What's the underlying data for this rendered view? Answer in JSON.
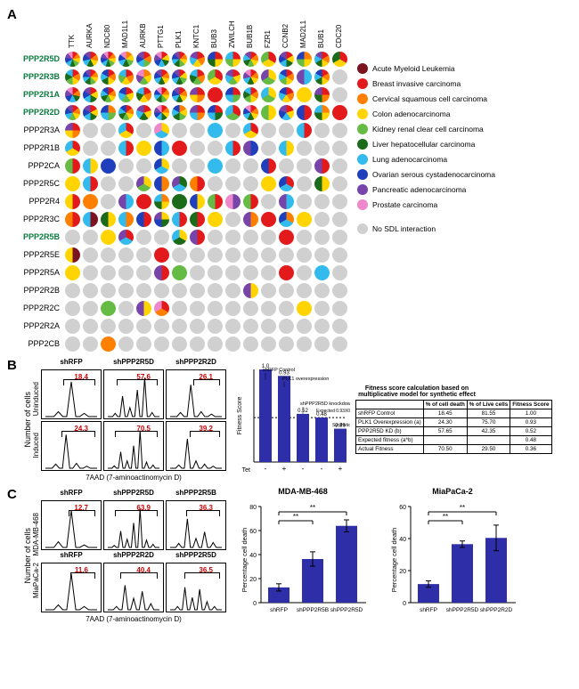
{
  "panelA": {
    "columns": [
      "TTK",
      "AURKA",
      "NDC80",
      "MAD1L1",
      "AURKB",
      "PTTG1",
      "PLK1",
      "KNTC1",
      "BUB3",
      "ZWILCH",
      "BUB1B",
      "FZR1",
      "CCNB2",
      "MAD2L1",
      "BUB1",
      "CDC20"
    ],
    "rows": [
      {
        "label": "PPP2R5D",
        "hl": true
      },
      {
        "label": "PPP2R3B",
        "hl": true
      },
      {
        "label": "PPP2R1A",
        "hl": true
      },
      {
        "label": "PPP2R2D",
        "hl": true
      },
      {
        "label": "PPP2R3A",
        "hl": false
      },
      {
        "label": "PPP2R1B",
        "hl": false
      },
      {
        "label": "PPP2CA",
        "hl": false
      },
      {
        "label": "PPP2R5C",
        "hl": false
      },
      {
        "label": "PPP2R4",
        "hl": false
      },
      {
        "label": "PPP2R3C",
        "hl": false
      },
      {
        "label": "PPP2R5B",
        "hl": true
      },
      {
        "label": "PPP2R5E",
        "hl": false
      },
      {
        "label": "PPP2R5A",
        "hl": false
      },
      {
        "label": "PPP2R2B",
        "hl": false
      },
      {
        "label": "PPP2R2C",
        "hl": false
      },
      {
        "label": "PPP2R2A",
        "hl": false
      },
      {
        "label": "PPP2CB",
        "hl": false
      }
    ],
    "cells": [
      [
        [
          "br",
          "ce",
          "co",
          "ki",
          "li",
          "lu",
          "ov",
          "pa",
          "pr"
        ],
        [
          "br",
          "ce",
          "co",
          "li",
          "lu",
          "ov",
          "pa"
        ],
        [
          "br",
          "ce",
          "co",
          "ki",
          "li",
          "lu",
          "ov",
          "pa",
          "pr"
        ],
        [
          "ce",
          "co",
          "ki",
          "li",
          "lu",
          "ov",
          "pr"
        ],
        [
          "br",
          "ce",
          "ki",
          "lu",
          "ov",
          "pa"
        ],
        [
          "br",
          "co",
          "li",
          "lu",
          "ov",
          "pa",
          "pr"
        ],
        [
          "br",
          "ce",
          "co",
          "ki",
          "li",
          "lu",
          "ov",
          "pa"
        ],
        [
          "br",
          "ce",
          "co",
          "lu",
          "pa"
        ],
        [
          "br",
          "co",
          "li",
          "ov"
        ],
        [
          "br",
          "co",
          "ki",
          "lu"
        ],
        [
          "br",
          "ce",
          "co",
          "ki",
          "li",
          "lu",
          "pa"
        ],
        [
          "br",
          "co",
          "ki"
        ],
        [
          "br",
          "co",
          "li",
          "lu",
          "ov",
          "pa"
        ],
        [
          "ce",
          "co",
          "ki",
          "ov"
        ],
        [
          "br",
          "ce",
          "co",
          "li",
          "lu",
          "pa"
        ],
        [
          "br",
          "co",
          "li"
        ]
      ],
      [
        [
          "br",
          "ce",
          "co",
          "ki",
          "li",
          "lu"
        ],
        [
          "br",
          "ce",
          "co",
          "ki",
          "li",
          "lu",
          "ov",
          "pa"
        ],
        [
          "br",
          "ce",
          "co",
          "li",
          "lu",
          "ov"
        ],
        [
          "br",
          "ce",
          "co",
          "ki",
          "lu"
        ],
        [
          "ce",
          "co",
          "ki",
          "pa",
          "pr"
        ],
        [
          "br",
          "ce",
          "co",
          "li",
          "lu",
          "ov",
          "pa"
        ],
        [
          "br",
          "co",
          "ki",
          "li",
          "lu",
          "ov",
          "pa"
        ],
        [
          "br",
          "ce",
          "ki",
          "li",
          "lu"
        ],
        [
          "br",
          "co",
          "ki"
        ],
        [
          "br",
          "co",
          "ki",
          "lu",
          "pa"
        ],
        [
          "br",
          "ce",
          "co",
          "li",
          "lu",
          "pa",
          "pr"
        ],
        [
          "co",
          "ki",
          "pa"
        ],
        [
          "br",
          "ce",
          "co",
          "ki",
          "lu",
          "ov"
        ],
        [
          "lu",
          "pa"
        ],
        [
          "br",
          "ce",
          "co",
          "li",
          "lu",
          "ov"
        ],
        []
      ],
      [
        [
          "br",
          "ce",
          "li",
          "lu",
          "ov",
          "pa",
          "pr"
        ],
        [
          "br",
          "co",
          "li",
          "lu",
          "ov",
          "pa"
        ],
        [
          "br",
          "ce",
          "co",
          "ki",
          "li",
          "lu",
          "ov"
        ],
        [
          "br",
          "co",
          "ki",
          "lu",
          "ov"
        ],
        [
          "br",
          "ce",
          "co",
          "li",
          "lu"
        ],
        [
          "br",
          "ce",
          "co",
          "ki",
          "li",
          "lu",
          "ov",
          "pr"
        ],
        [
          "br",
          "ce",
          "co",
          "li",
          "lu",
          "ov",
          "pa"
        ],
        [
          "br",
          "ce",
          "co",
          "pa"
        ],
        [
          "br"
        ],
        [
          "br",
          "ki",
          "lu",
          "ov"
        ],
        [
          "br",
          "ce",
          "co",
          "ki",
          "li",
          "lu"
        ],
        [
          "co",
          "ki",
          "lu"
        ],
        [
          "br",
          "ce",
          "co",
          "lu",
          "ov"
        ],
        [
          "co"
        ],
        [
          "br",
          "ce",
          "li",
          "pa"
        ],
        []
      ],
      [
        [
          "br",
          "ce",
          "co",
          "ki",
          "lu",
          "ov",
          "pa"
        ],
        [
          "br",
          "co",
          "li",
          "lu",
          "ov",
          "pa"
        ],
        [
          "ce",
          "ki",
          "lu",
          "ov"
        ],
        [
          "br",
          "ce",
          "co",
          "ki",
          "li",
          "lu",
          "ov"
        ],
        [
          "br",
          "co",
          "li",
          "lu",
          "pa"
        ],
        [
          "br",
          "ce",
          "co",
          "li",
          "lu",
          "ov",
          "pa",
          "pr"
        ],
        [
          "ce",
          "co",
          "ki",
          "li",
          "lu",
          "ov"
        ],
        [
          "br",
          "ce",
          "lu",
          "pa"
        ],
        [
          "br",
          "li",
          "lu",
          "ov"
        ],
        [
          "br",
          "ki",
          "lu"
        ],
        [
          "br",
          "ce",
          "co",
          "li",
          "lu",
          "ov",
          "pr"
        ],
        [
          "co",
          "ki"
        ],
        [
          "br",
          "co",
          "lu",
          "ov",
          "pa"
        ],
        [
          "br",
          "ov"
        ],
        [
          "ce",
          "co",
          "li",
          "lu"
        ],
        [
          "br"
        ]
      ],
      [
        [
          "br",
          "ce",
          "co",
          "pa"
        ],
        [],
        [],
        [
          "br",
          "co",
          "lu"
        ],
        [],
        [
          "co",
          "lu",
          "pr"
        ],
        [],
        [],
        [
          "lu"
        ],
        [],
        [
          "br",
          "co",
          "lu"
        ],
        [],
        [],
        [
          "br",
          "lu"
        ],
        [],
        []
      ],
      [
        [
          "br",
          "co",
          "lu"
        ],
        [],
        [],
        [
          "br",
          "lu"
        ],
        [
          "co"
        ],
        [
          "lu",
          "ov"
        ],
        [
          "br"
        ],
        [],
        [],
        [
          "br",
          "lu"
        ],
        [
          "ov",
          "pa"
        ],
        [],
        [
          "co",
          "lu"
        ],
        [],
        [],
        []
      ],
      [
        [
          "br",
          "ki"
        ],
        [
          "co",
          "lu"
        ],
        [
          "ov"
        ],
        [],
        [],
        [
          "co",
          "lu",
          "ov"
        ],
        [],
        [],
        [
          "lu"
        ],
        [],
        [],
        [
          "br",
          "ov"
        ],
        [],
        [],
        [
          "br",
          "pa"
        ],
        []
      ],
      [
        [
          "co"
        ],
        [
          "br",
          "lu"
        ],
        [],
        [],
        [
          "co",
          "ki",
          "pa"
        ],
        [
          "ce",
          "ov"
        ],
        [
          "li",
          "lu",
          "pa"
        ],
        [
          "br",
          "ce"
        ],
        [],
        [],
        [],
        [
          "co"
        ],
        [
          "br",
          "lu",
          "ov"
        ],
        [],
        [
          "co",
          "li"
        ],
        []
      ],
      [
        [
          "br",
          "co"
        ],
        [
          "ce"
        ],
        [],
        [
          "lu",
          "pa"
        ],
        [
          "br"
        ],
        [
          "ce",
          "co",
          "li",
          "lu"
        ],
        [
          "li"
        ],
        [
          "co",
          "ov"
        ],
        [
          "br",
          "ki"
        ],
        [
          "pa",
          "pr"
        ],
        [
          "br",
          "ki"
        ],
        [],
        [
          "lu",
          "pa"
        ],
        [],
        [],
        []
      ],
      [
        [
          "br",
          "ce"
        ],
        [
          "am",
          "lu"
        ],
        [
          "co",
          "li"
        ],
        [
          "ce",
          "lu"
        ],
        [
          "br",
          "ov"
        ],
        [
          "co",
          "li",
          "ov",
          "pa"
        ],
        [
          "br",
          "lu"
        ],
        [
          "br",
          "li"
        ],
        [
          "co"
        ],
        [],
        [
          "ce",
          "pa"
        ],
        [
          "br"
        ],
        [
          "ce",
          "lu",
          "ov"
        ],
        [
          "co"
        ],
        [],
        []
      ],
      [
        [],
        [],
        [
          "co"
        ],
        [
          "br",
          "lu",
          "pa"
        ],
        [],
        [],
        [
          "co",
          "li",
          "lu"
        ],
        [
          "br",
          "pa"
        ],
        [],
        [],
        [],
        [],
        [
          "br"
        ],
        [],
        [],
        []
      ],
      [
        [
          "am",
          "co"
        ],
        [],
        [],
        [],
        [],
        [
          "br"
        ],
        [],
        [],
        [],
        [],
        [],
        [],
        [],
        [],
        [],
        []
      ],
      [
        [
          "co"
        ],
        [],
        [],
        [],
        [],
        [
          "br",
          "pa"
        ],
        [
          "ki"
        ],
        [],
        [],
        [],
        [],
        [],
        [
          "br"
        ],
        [],
        [
          "lu"
        ],
        []
      ],
      [
        [],
        [],
        [],
        [],
        [],
        [],
        [],
        [],
        [],
        [],
        [
          "co",
          "pa"
        ],
        [],
        [],
        [],
        [],
        []
      ],
      [
        [],
        [],
        [
          "ki"
        ],
        [],
        [
          "co",
          "pa"
        ],
        [
          "br",
          "ce",
          "pr"
        ],
        [],
        [],
        [],
        [],
        [],
        [],
        [],
        [
          "co"
        ],
        [],
        []
      ],
      [
        [],
        [],
        [],
        [],
        [],
        [],
        [],
        [],
        [],
        [],
        [],
        [],
        [],
        [],
        [],
        []
      ],
      [
        [],
        [],
        [
          "ce"
        ],
        [],
        [],
        [],
        [],
        [],
        [],
        [],
        [],
        [],
        [],
        [],
        [],
        []
      ]
    ],
    "colorMap": {
      "am": "#7b1420",
      "br": "#e31a1c",
      "ce": "#ff7f00",
      "co": "#ffd400",
      "ki": "#66bb44",
      "li": "#1b6b1b",
      "lu": "#33bbee",
      "ov": "#1f3fbd",
      "pa": "#7744aa",
      "pr": "#ee88cc",
      "none": "#d0d0d0"
    },
    "legend": [
      {
        "key": "am",
        "label": "Acute Myeloid Leukemia"
      },
      {
        "key": "br",
        "label": "Breast invasive carcinoma"
      },
      {
        "key": "ce",
        "label": "Cervical squamous cell carcinoma"
      },
      {
        "key": "co",
        "label": "Colon adenocarcinoma"
      },
      {
        "key": "ki",
        "label": "Kidney renal clear cell carcinoma"
      },
      {
        "key": "li",
        "label": "Liver hepatocellular carcinoma"
      },
      {
        "key": "lu",
        "label": "Lung adenocarcinoma"
      },
      {
        "key": "ov",
        "label": "Ovarian serous cystadenocarcinoma"
      },
      {
        "key": "pa",
        "label": "Pancreatic adenocarcinoma"
      },
      {
        "key": "pr",
        "label": "Prostate carcinoma"
      }
    ],
    "noSDL": "No SDL interaction"
  },
  "panelB": {
    "rowLabels": [
      "Uninduced",
      "Induced"
    ],
    "colLabels": [
      "shRFP",
      "shPPP2R5D",
      "shPPP2R2D"
    ],
    "yAxis": "Number of cells",
    "xAxis": "7AAD (7-aminoactinomycin D)",
    "values": [
      [
        18.4,
        57.6,
        26.1
      ],
      [
        24.3,
        70.5,
        39.2
      ]
    ],
    "gateWidths": [
      [
        36,
        46,
        30
      ],
      [
        38,
        48,
        34
      ]
    ],
    "peaks": [
      [
        [
          0.12,
          0.85,
          0.08
        ],
        [
          0.08,
          0.5,
          0.22,
          0.65,
          0.95,
          0.1
        ],
        [
          0.1,
          0.78,
          0.12,
          0.06
        ]
      ],
      [
        [
          0.1,
          0.82,
          0.12,
          0.05
        ],
        [
          0.06,
          0.4,
          0.18,
          0.55,
          0.92,
          0.15,
          0.08
        ],
        [
          0.08,
          0.72,
          0.18,
          0.1,
          0.05
        ]
      ]
    ],
    "bar": {
      "ylabel": "Fitness Score",
      "ymax": 1.0,
      "callouts": [
        "shRFP Control",
        "PLK1 overexpression",
        "shPPP2R5D knockdown",
        "Expected 0.93X0.52=0.48",
        "Synthetic lethal/sick"
      ],
      "values": [
        1.0,
        0.93,
        0.52,
        0.48,
        0.36
      ],
      "labels": [
        "1.0",
        "0.93",
        "0.52",
        "0.48",
        "0.36"
      ],
      "xcat": "Tet",
      "xticks": [
        "-",
        "+",
        "-",
        "-",
        "+"
      ],
      "color": "#2e2ea8"
    },
    "table": {
      "title": "Fitness score calculation based on multiplicative model for synthetic effect",
      "headers": [
        "",
        "% of cell death",
        "% of Live cells",
        "Fitness Score"
      ],
      "rows": [
        [
          "shRFP Control",
          "18.45",
          "81.55",
          "1.00"
        ],
        [
          "PLK1 Overexpression (a)",
          "24.30",
          "75.70",
          "0.93"
        ],
        [
          "PPP2R5D KD (b)",
          "57.65",
          "42.35",
          "0.52"
        ],
        [
          "Expected fitness (a*b)",
          "",
          "",
          "0.48"
        ],
        [
          "Actual Fitness",
          "70.50",
          "29.50",
          "0.36"
        ]
      ]
    }
  },
  "panelC": {
    "rowLabels": [
      "MDA-MB-468",
      "MiaPaCa-2"
    ],
    "yAxis": "Number of cells",
    "xAxis": "7AAD (7-aminoactinomycin D)",
    "grid": [
      {
        "cols": [
          "shRFP",
          "shPPP2R5D",
          "shPPP2R5B"
        ],
        "vals": [
          12.7,
          63.9,
          36.3
        ],
        "gw": [
          30,
          48,
          38
        ]
      },
      {
        "cols": [
          "shRFP",
          "shPPP2R2D",
          "shPPP2R5D"
        ],
        "vals": [
          11.6,
          40.4,
          36.5
        ],
        "gw": [
          28,
          42,
          40
        ]
      }
    ],
    "peaks": [
      [
        [
          0.14,
          0.9,
          0.06
        ],
        [
          0.05,
          0.4,
          0.2,
          0.6,
          0.95,
          0.18,
          0.08
        ],
        [
          0.1,
          0.7,
          0.22,
          0.38,
          0.12
        ]
      ],
      [
        [
          0.12,
          0.88,
          0.08
        ],
        [
          0.08,
          0.6,
          0.28,
          0.45,
          0.15
        ],
        [
          0.08,
          0.55,
          0.3,
          0.5,
          0.2,
          0.08
        ]
      ]
    ],
    "bars": [
      {
        "title": "MDA-MB-468",
        "ylabel": "Percentage cell death",
        "ymax": 80,
        "cats": [
          "shRFP",
          "shPPP2R5B",
          "shPPP2R5D"
        ],
        "vals": [
          12.7,
          36.3,
          63.9
        ],
        "err": [
          3,
          6,
          5
        ],
        "color": "#2e2ea8",
        "sig": "**"
      },
      {
        "title": "MiaPaCa-2",
        "ylabel": "Percentage cell death",
        "ymax": 60,
        "cats": [
          "shRFP",
          "shPPP2R5D",
          "shPPP2R2D"
        ],
        "vals": [
          11.6,
          36.5,
          40.4
        ],
        "err": [
          2,
          2,
          8
        ],
        "color": "#2e2ea8",
        "sig": "**"
      }
    ]
  }
}
